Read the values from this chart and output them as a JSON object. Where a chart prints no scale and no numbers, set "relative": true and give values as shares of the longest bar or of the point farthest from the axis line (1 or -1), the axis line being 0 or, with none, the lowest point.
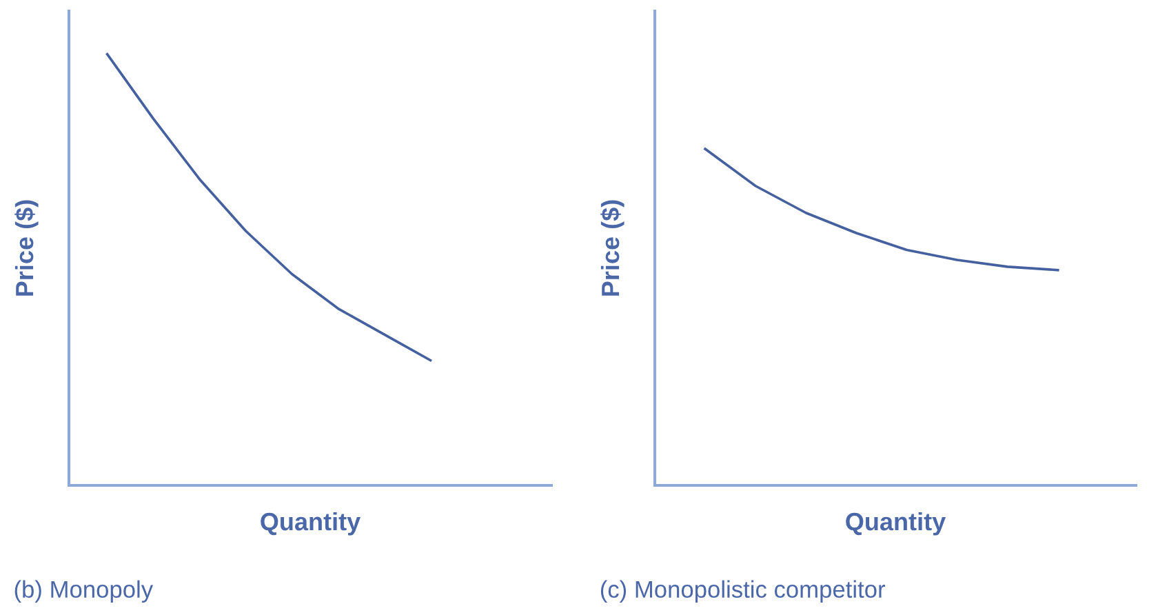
{
  "chart_data": [
    {
      "type": "line",
      "title": "(b) Monopoly",
      "xlabel": "Quantity",
      "ylabel": "Price ($)",
      "relative": true,
      "tick_labels": false,
      "grid": false,
      "marker": "none",
      "line_style": "solid",
      "categories": [
        null,
        null,
        null,
        null,
        null,
        null,
        null,
        null
      ],
      "series": [
        {
          "color": "#44609e",
          "values": [
            1,
            0.85,
            0.71,
            0.59,
            0.49,
            0.41,
            0.35,
            0.29
          ]
        }
      ]
    },
    {
      "type": "line",
      "title": "(c) Monopolistic competitor",
      "xlabel": "Quantity",
      "ylabel": "Price ($)",
      "relative": true,
      "tick_labels": false,
      "grid": false,
      "marker": "none",
      "line_style": "solid",
      "categories": [
        null,
        null,
        null,
        null,
        null,
        null,
        null,
        null
      ],
      "series": [
        {
          "color": "#44609e",
          "values": [
            1,
            0.89,
            0.81,
            0.75,
            0.7,
            0.67,
            0.65,
            0.64
          ]
        }
      ]
    }
  ]
}
